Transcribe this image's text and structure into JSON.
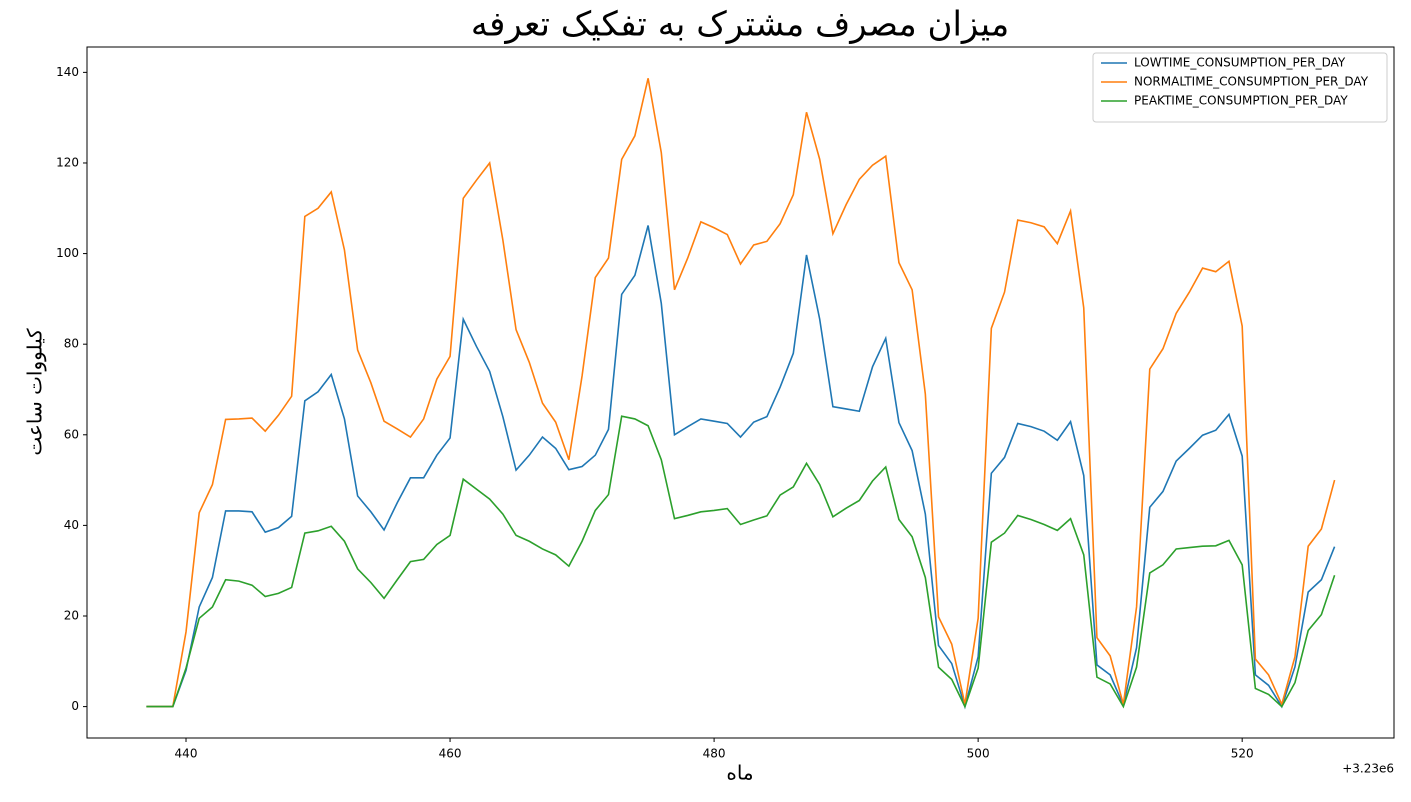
{
  "chart_data": {
    "type": "line",
    "title": "میزان مصرف مشترک به تفکیک تعرفه",
    "xlabel": "ماه",
    "ylabel": "کیلووات ساعت",
    "x_offset_label": "+3.23e6",
    "x": [
      437,
      438,
      439,
      440,
      441,
      442,
      443,
      444,
      445,
      446,
      447,
      448,
      449,
      450,
      451,
      452,
      453,
      454,
      455,
      456,
      457,
      458,
      459,
      460,
      461,
      462,
      463,
      464,
      465,
      466,
      467,
      468,
      469,
      470,
      471,
      472,
      473,
      474,
      475,
      476,
      477,
      478,
      479,
      480,
      481,
      482,
      483,
      484,
      485,
      486,
      487,
      488,
      489,
      490,
      491,
      492,
      493,
      494,
      495,
      496,
      497,
      498,
      499,
      500,
      501,
      502,
      503,
      504,
      505,
      506,
      507,
      508,
      509,
      510,
      511,
      512,
      513,
      514,
      515,
      516,
      517,
      518,
      519,
      520,
      521,
      522,
      523,
      524,
      525,
      526,
      527
    ],
    "series": [
      {
        "name": "LOWTIME_CONSUMPTION_PER_DAY",
        "color": "#1f77b4",
        "values": [
          0,
          0,
          0,
          8,
          22,
          28.5,
          43.2,
          43.2,
          43,
          38.5,
          39.5,
          42,
          67.5,
          69.5,
          73.3,
          63.5,
          46.5,
          43,
          39,
          45,
          50.5,
          50.5,
          55.5,
          59.3,
          85.5,
          79.5,
          74,
          64,
          52.2,
          55.5,
          59.5,
          57,
          52.3,
          53,
          55.5,
          61.2,
          91,
          95.2,
          106.2,
          89,
          60,
          61.8,
          63.5,
          63,
          62.5,
          59.5,
          62.8,
          64,
          70.5,
          78,
          99.7,
          85.5,
          66.2,
          65.7,
          65.2,
          75,
          81.3,
          62.7,
          56.5,
          42.5,
          13.5,
          9.5,
          0,
          11,
          51.5,
          55,
          62.5,
          61.8,
          60.8,
          58.8,
          62.9,
          51,
          9.2,
          7,
          0.3,
          13,
          44,
          47.5,
          54.2,
          57,
          59.9,
          61,
          64.5,
          55.3,
          7,
          4.7,
          0,
          8.8,
          25.3,
          28,
          35.3
        ]
      },
      {
        "name": "NORMALTIME_CONSUMPTION_PER_DAY",
        "color": "#ff7f0e",
        "values": [
          0,
          0,
          0,
          16.5,
          42.8,
          49,
          63.4,
          63.5,
          63.7,
          60.8,
          64.3,
          68.5,
          108.2,
          110,
          113.6,
          100.8,
          78.7,
          71.5,
          63,
          61.3,
          59.5,
          63.5,
          72.3,
          77.3,
          112.2,
          116.2,
          120,
          103,
          83.2,
          76,
          67,
          62.8,
          54.5,
          73,
          94.7,
          99,
          120.8,
          126,
          138.7,
          122.3,
          92,
          99,
          107,
          105.7,
          104.2,
          97.7,
          101.9,
          102.7,
          106.6,
          113,
          131.2,
          120.8,
          104.4,
          110.8,
          116.4,
          119.5,
          121.5,
          98,
          92,
          69,
          19.8,
          13.8,
          0.5,
          19.5,
          83.5,
          91.5,
          107.4,
          106.8,
          105.9,
          102.2,
          109.4,
          88,
          15.2,
          11.2,
          0.5,
          22,
          74.5,
          79,
          86.8,
          91.5,
          96.8,
          96,
          98.3,
          84,
          10.5,
          7,
          0.5,
          11,
          35.4,
          39.2,
          50
        ]
      },
      {
        "name": "PEAKTIME_CONSUMPTION_PER_DAY",
        "color": "#2ca02c",
        "values": [
          0,
          0,
          0,
          8.5,
          19.5,
          22,
          28,
          27.7,
          26.8,
          24.3,
          25,
          26.3,
          38.3,
          38.8,
          39.8,
          36.5,
          30.4,
          27.4,
          23.9,
          28,
          32,
          32.5,
          35.8,
          37.8,
          50.2,
          48,
          45.8,
          42.5,
          37.8,
          36.5,
          34.8,
          33.5,
          31,
          36.5,
          43.3,
          46.8,
          64.1,
          63.5,
          62,
          54.5,
          41.5,
          42.2,
          43,
          43.3,
          43.7,
          40.2,
          41.2,
          42.1,
          46.7,
          48.5,
          53.7,
          49,
          41.9,
          43.8,
          45.5,
          49.8,
          52.9,
          41.3,
          37.5,
          28.5,
          8.7,
          6,
          0,
          8.5,
          36.3,
          38.3,
          42.2,
          41.3,
          40.2,
          38.9,
          41.5,
          33.5,
          6.5,
          5,
          0,
          8.7,
          29.5,
          31.3,
          34.8,
          35.1,
          35.4,
          35.5,
          36.7,
          31.3,
          4,
          2.7,
          0,
          5.3,
          16.8,
          20.3,
          29
        ]
      }
    ],
    "xlim": [
      432.5,
      531.5
    ],
    "xticks": [
      440,
      460,
      480,
      500,
      520
    ],
    "ylim": [
      -6.93,
      145.6
    ],
    "yticks": [
      0,
      20,
      40,
      60,
      80,
      100,
      120,
      140
    ],
    "grid": false,
    "legend": "upper right"
  }
}
